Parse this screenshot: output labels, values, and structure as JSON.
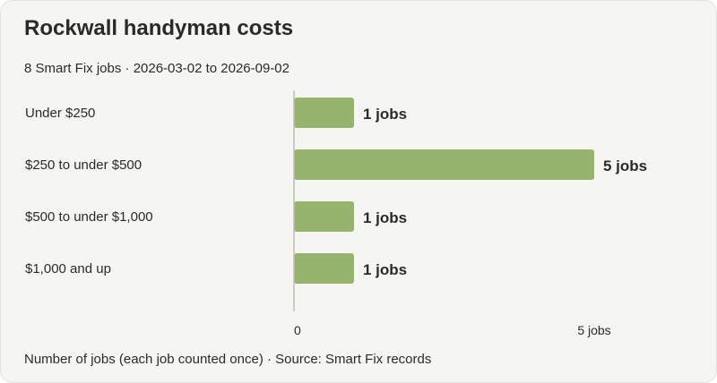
{
  "header": {
    "title": "Rockwall handyman costs",
    "subtitle": "8 Smart Fix jobs · 2026-03-02 to 2026-09-02"
  },
  "footer": {
    "note": "Number of jobs (each job counted once) · Source: Smart Fix records"
  },
  "colors": {
    "bar": "#96b46e",
    "axis": "#bdbdb5",
    "text": "#2a2a2a",
    "background": "#f5f6f1"
  },
  "chart_data": {
    "type": "bar",
    "orientation": "horizontal",
    "categories": [
      "Under $250",
      "$250 to under $500",
      "$500 to under $1,000",
      "$1,000 and up"
    ],
    "values": [
      1,
      5,
      1,
      1
    ],
    "value_labels": [
      "1 jobs",
      "5 jobs",
      "1 jobs",
      "1 jobs"
    ],
    "xlim": [
      0,
      5
    ],
    "x_ticks": [
      {
        "value": 0,
        "label": "0"
      },
      {
        "value": 5,
        "label": "5 jobs"
      }
    ],
    "grid": false,
    "legend": "none"
  }
}
